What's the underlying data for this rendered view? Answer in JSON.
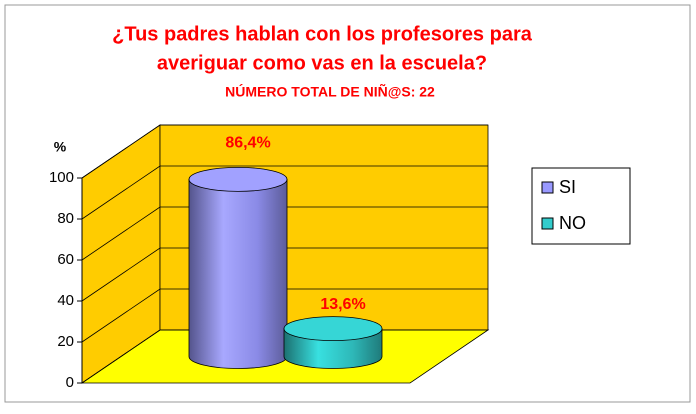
{
  "chart_data": {
    "type": "bar3d-cylinder",
    "title": [
      "¿Tus padres hablan con los profesores para",
      "averiguar como vas en la escuela?"
    ],
    "subtitle": "NÚMERO TOTAL DE NIÑ@S: 22",
    "y_label": "%",
    "series": [
      {
        "name": "SI",
        "color": "#9999ff",
        "values": [
          86.4
        ],
        "value_labels": [
          "86,4%"
        ]
      },
      {
        "name": "NO",
        "color": "#33cccc",
        "values": [
          13.6
        ],
        "value_labels": [
          "13,6%"
        ]
      }
    ],
    "ylim": [
      0,
      100
    ],
    "yticks": [
      0,
      20,
      40,
      60,
      80,
      100
    ],
    "grid": true,
    "legend": "right",
    "wall_color": "#ffcc00",
    "floor_color": "#ffff00"
  }
}
